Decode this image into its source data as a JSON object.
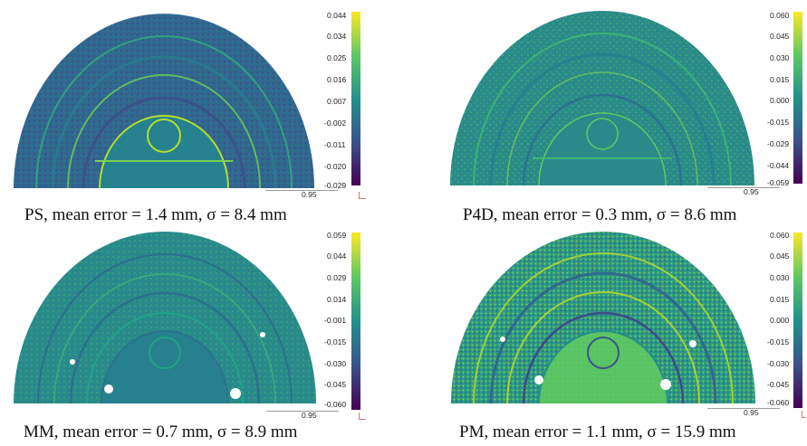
{
  "panels": [
    {
      "id": "ps",
      "caption": "PS, mean error = 1.4 mm, σ = 8.4 mm",
      "scalebar_value": "0.95",
      "colorbar_ticks": [
        "0.044",
        "0.034",
        "0.025",
        "0.016",
        "0.007",
        "-0.002",
        "-0.011",
        "-0.020",
        "-0.029"
      ]
    },
    {
      "id": "p4d",
      "caption": "P4D, mean error = 0.3 mm, σ = 8.6 mm",
      "scalebar_value": "0.95",
      "colorbar_ticks": [
        "0.060",
        "0.045",
        "0.030",
        "0.015",
        "0.000",
        "-0.015",
        "-0.029",
        "-0.044",
        "-0.059"
      ]
    },
    {
      "id": "mm",
      "caption": "MM, mean error = 0.7 mm, σ = 8.9 mm",
      "scalebar_value": "0.95",
      "colorbar_ticks": [
        "0.059",
        "0.044",
        "0.029",
        "0.014",
        "-0.001",
        "-0.015",
        "-0.030",
        "-0.045",
        "-0.060"
      ]
    },
    {
      "id": "pm",
      "caption": "PM, mean error = 1.1 mm, σ = 15.9 mm",
      "scalebar_value": "0.95",
      "colorbar_ticks": [
        "0.060",
        "0.045",
        "0.030",
        "0.015",
        "0.000",
        "-0.015",
        "-0.030",
        "-0.045",
        "-0.060"
      ]
    }
  ],
  "colormap": [
    "#440154",
    "#3b528b",
    "#21918c",
    "#5ec962",
    "#fde725"
  ]
}
